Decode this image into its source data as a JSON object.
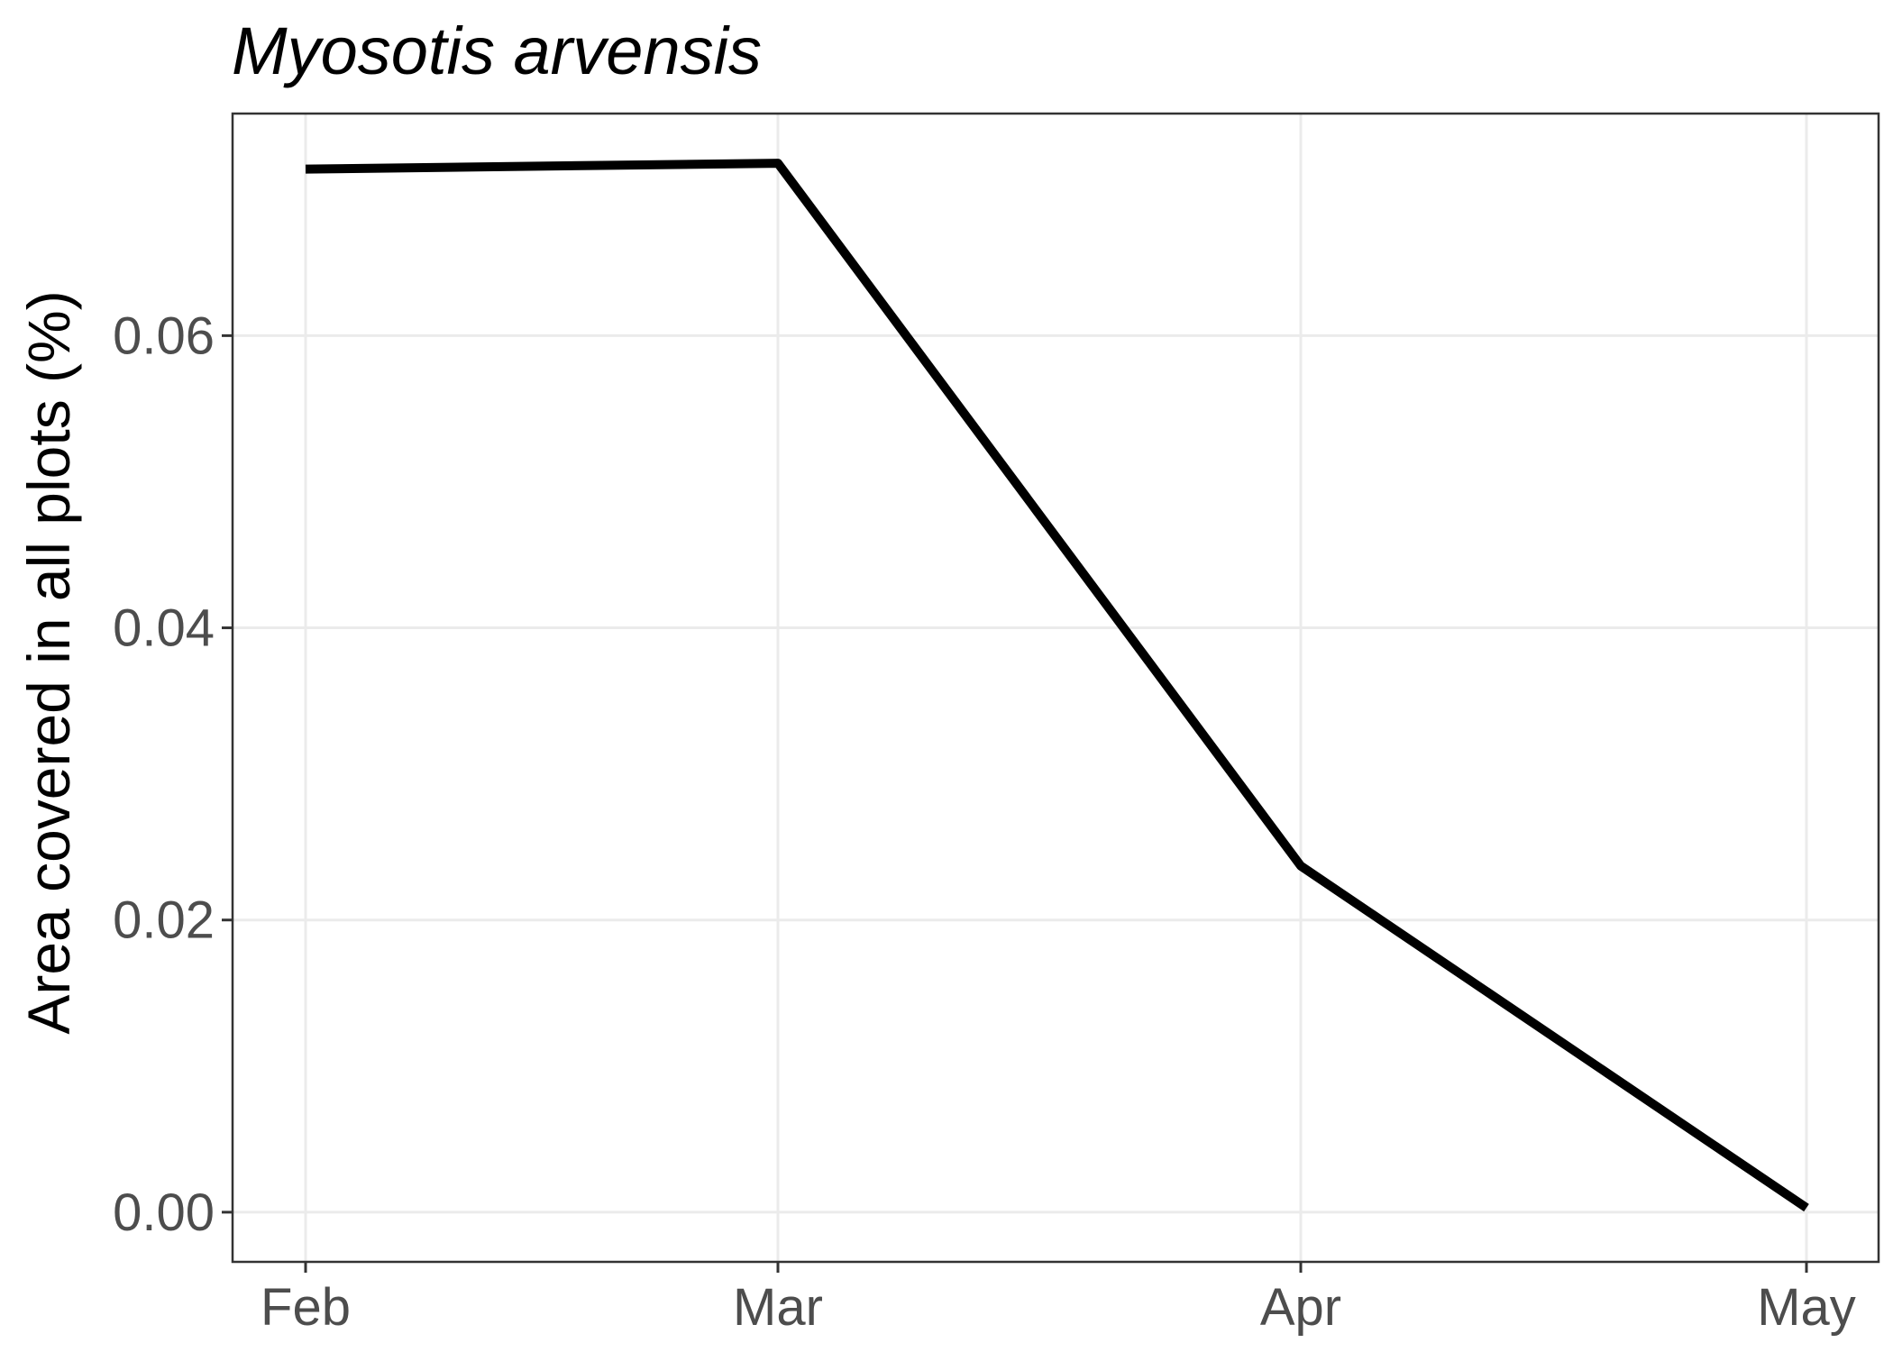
{
  "chart_data": {
    "type": "line",
    "title": "Myosotis arvensis",
    "xlabel": "",
    "ylabel": "Area covered in all plots (%)",
    "categories": [
      "Feb",
      "Mar",
      "Apr",
      "May"
    ],
    "x": [
      "2020-02-01",
      "2020-03-01",
      "2020-04-01",
      "2020-05-01"
    ],
    "series": [
      {
        "values": [
          0.0714,
          0.0718,
          0.0237,
          0.0003
        ]
      }
    ],
    "ylim": [
      -0.0034,
      0.0752
    ],
    "yticks": [
      0.0,
      0.02,
      0.04,
      0.06
    ],
    "ytick_labels": [
      "0.00",
      "0.02",
      "0.04",
      "0.06"
    ],
    "grid": true,
    "legend": "none",
    "colors": {
      "line": "#000000",
      "grid": "#ebebeb",
      "axis_text": "#4d4d4d"
    }
  }
}
